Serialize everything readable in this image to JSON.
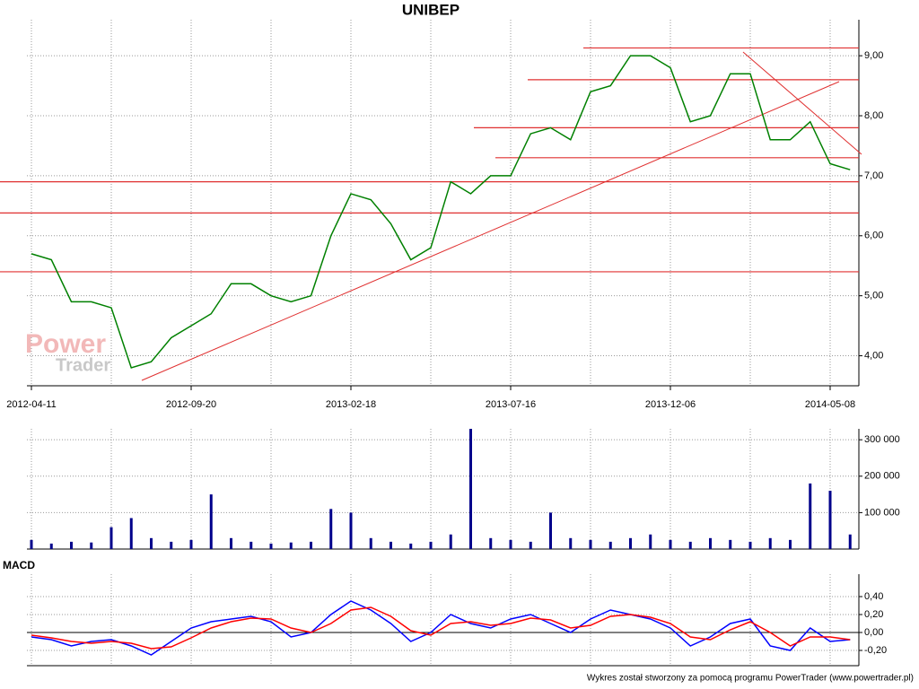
{
  "chart_data": [
    {
      "type": "line",
      "title": "UNIBEP",
      "watermark": [
        "Power",
        "Trader"
      ],
      "categories": [
        "2012-04-11",
        null,
        null,
        null,
        null,
        null,
        null,
        null,
        "2012-09-20",
        null,
        null,
        null,
        null,
        null,
        null,
        null,
        "2013-02-18",
        null,
        null,
        null,
        null,
        null,
        null,
        null,
        "2013-07-16",
        null,
        null,
        null,
        null,
        null,
        null,
        null,
        "2013-12-06",
        null,
        null,
        null,
        null,
        null,
        null,
        null,
        "2014-05-08",
        null
      ],
      "series": [
        {
          "color": "#008000",
          "values": [
            5.7,
            5.6,
            4.9,
            4.9,
            4.8,
            3.8,
            3.9,
            4.3,
            4.5,
            4.7,
            5.2,
            5.2,
            5.0,
            4.9,
            5.0,
            6.0,
            6.7,
            6.6,
            6.2,
            5.6,
            5.8,
            6.9,
            6.7,
            7.0,
            7.0,
            7.7,
            7.8,
            7.6,
            8.4,
            8.5,
            9.0,
            9.0,
            8.8,
            7.9,
            8.0,
            8.7,
            8.7,
            7.6,
            7.6,
            7.9,
            7.2,
            7.1
          ]
        }
      ],
      "levels": [
        9.13,
        8.6,
        7.8,
        7.3,
        6.9,
        6.38,
        5.4
      ],
      "level_color": "#e03030",
      "ylim": [
        3.5,
        9.6
      ],
      "yticks": [
        {
          "value": 4,
          "label": "4,00"
        },
        {
          "value": 5,
          "label": "5,00"
        },
        {
          "value": 6,
          "label": "6,00"
        },
        {
          "value": 7,
          "label": "7,00"
        },
        {
          "value": 8,
          "label": "8,00"
        },
        {
          "value": 9,
          "label": "9,00"
        }
      ],
      "grid": true
    },
    {
      "type": "bar",
      "color": "#00008b",
      "values": [
        25000,
        15000,
        20000,
        18000,
        60000,
        85000,
        30000,
        20000,
        25000,
        150000,
        30000,
        20000,
        15000,
        18000,
        20000,
        110000,
        100000,
        30000,
        20000,
        15000,
        20000,
        40000,
        330000,
        30000,
        25000,
        20000,
        100000,
        30000,
        25000,
        20000,
        30000,
        40000,
        25000,
        20000,
        30000,
        25000,
        20000,
        30000,
        25000,
        180000,
        160000,
        40000
      ],
      "ylim": [
        0,
        330000
      ],
      "yticks": [
        {
          "value": 100000,
          "label": "100 000"
        },
        {
          "value": 200000,
          "label": "200 000"
        },
        {
          "value": 300000,
          "label": "300 000"
        }
      ],
      "grid": true
    },
    {
      "type": "line",
      "title": "MACD",
      "series": [
        {
          "color": "#0000ff",
          "values": [
            -0.05,
            -0.08,
            -0.15,
            -0.1,
            -0.08,
            -0.15,
            -0.25,
            -0.1,
            0.05,
            0.12,
            0.15,
            0.18,
            0.12,
            -0.05,
            0.0,
            0.2,
            0.35,
            0.25,
            0.1,
            -0.1,
            0.0,
            0.2,
            0.1,
            0.05,
            0.15,
            0.2,
            0.1,
            0.0,
            0.15,
            0.25,
            0.2,
            0.15,
            0.05,
            -0.15,
            -0.05,
            0.1,
            0.15,
            -0.15,
            -0.2,
            0.05,
            -0.1,
            -0.08
          ]
        },
        {
          "color": "#ff0000",
          "values": [
            -0.03,
            -0.06,
            -0.1,
            -0.12,
            -0.1,
            -0.12,
            -0.18,
            -0.16,
            -0.06,
            0.05,
            0.12,
            0.16,
            0.15,
            0.05,
            0.0,
            0.1,
            0.25,
            0.28,
            0.18,
            0.02,
            -0.03,
            0.1,
            0.12,
            0.08,
            0.1,
            0.16,
            0.14,
            0.05,
            0.08,
            0.18,
            0.2,
            0.17,
            0.1,
            -0.05,
            -0.08,
            0.03,
            0.12,
            0.0,
            -0.15,
            -0.05,
            -0.05,
            -0.08
          ]
        }
      ],
      "ylim": [
        -0.37,
        0.65
      ],
      "yticks": [
        {
          "value": -0.2,
          "label": "-0,20"
        },
        {
          "value": 0,
          "label": "0,00"
        },
        {
          "value": 0.2,
          "label": "0,20"
        },
        {
          "value": 0.4,
          "label": "0,40"
        }
      ],
      "grid": true
    }
  ],
  "footer": "Wykres został stworzony za pomocą programu PowerTrader (www.powertrader.pl)"
}
